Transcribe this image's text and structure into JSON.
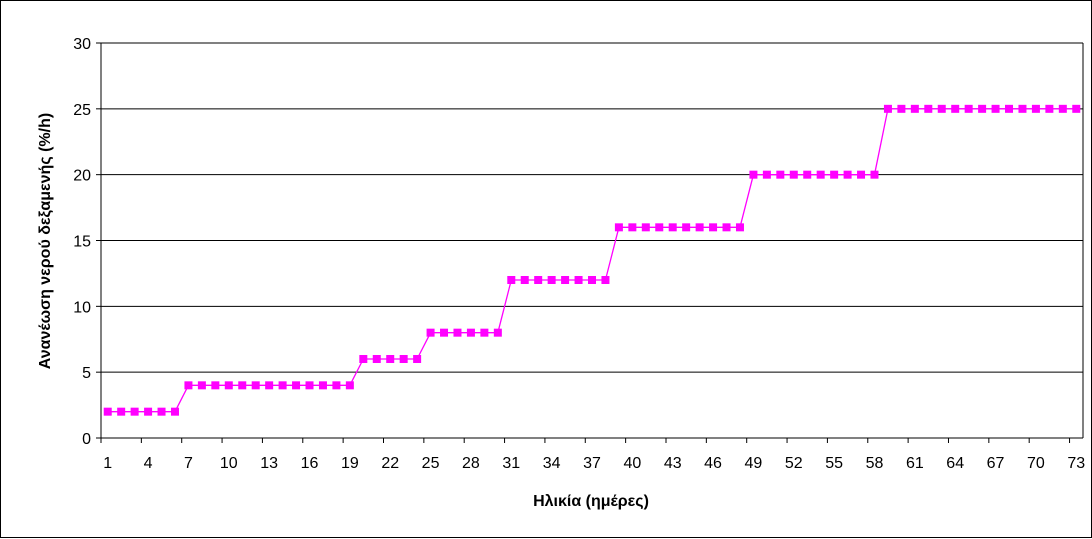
{
  "chart_data": {
    "type": "line",
    "xlabel": "Ηλικία (ημέρες)",
    "ylabel": "Ανανέωση νερού δεξαμενής (%/h)",
    "ylim": [
      0,
      30
    ],
    "yticks": [
      0,
      5,
      10,
      15,
      20,
      25,
      30
    ],
    "xticks": [
      1,
      4,
      7,
      10,
      13,
      16,
      19,
      22,
      25,
      28,
      31,
      34,
      37,
      40,
      43,
      46,
      49,
      52,
      55,
      58,
      61,
      64,
      67,
      70,
      73
    ],
    "grid": "horizontal",
    "legend": "none",
    "series": [
      {
        "color": "#ff00ff",
        "marker": "square",
        "x": [
          1,
          2,
          3,
          4,
          5,
          6,
          7,
          8,
          9,
          10,
          11,
          12,
          13,
          14,
          15,
          16,
          17,
          18,
          19,
          20,
          21,
          22,
          23,
          24,
          25,
          26,
          27,
          28,
          29,
          30,
          31,
          32,
          33,
          34,
          35,
          36,
          37,
          38,
          39,
          40,
          41,
          42,
          43,
          44,
          45,
          46,
          47,
          48,
          49,
          50,
          51,
          52,
          53,
          54,
          55,
          56,
          57,
          58,
          59,
          60,
          61,
          62,
          63,
          64,
          65,
          66,
          67,
          68,
          69,
          70,
          71,
          72,
          73
        ],
        "y": [
          2,
          2,
          2,
          2,
          2,
          2,
          4,
          4,
          4,
          4,
          4,
          4,
          4,
          4,
          4,
          4,
          4,
          4,
          4,
          6,
          6,
          6,
          6,
          6,
          8,
          8,
          8,
          8,
          8,
          8,
          12,
          12,
          12,
          12,
          12,
          12,
          12,
          12,
          16,
          16,
          16,
          16,
          16,
          16,
          16,
          16,
          16,
          16,
          20,
          20,
          20,
          20,
          20,
          20,
          20,
          20,
          20,
          20,
          25,
          25,
          25,
          25,
          25,
          25,
          25,
          25,
          25,
          25,
          25,
          25,
          25,
          25,
          25
        ]
      }
    ]
  }
}
